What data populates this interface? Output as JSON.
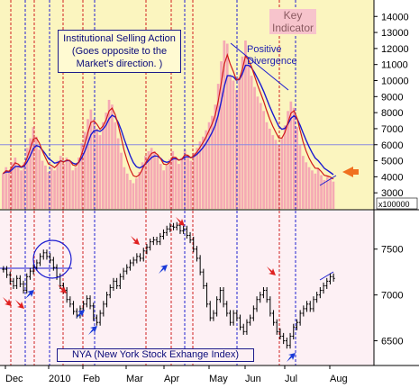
{
  "chart_data": [
    {
      "type": "bar",
      "title": "",
      "panel": "top",
      "annotations": {
        "key_indicator": "Key\nIndicator",
        "institutional_note": "Institutional Selling Action\n(Goes opposite to the\nMarket's direction. )",
        "divergence": "Positive\nDivergence"
      },
      "y_unit": "x100000",
      "yticks": [
        3000,
        4000,
        5000,
        6000,
        7000,
        8000,
        9000,
        10000,
        11000,
        12000,
        13000,
        14000
      ],
      "ylim": [
        2000,
        14800
      ],
      "reference_line": 6000,
      "series_bar_values": [
        4200,
        4600,
        4300,
        4900,
        5200,
        4700,
        4400,
        4900,
        5800,
        6400,
        7100,
        6500,
        5700,
        5000,
        4700,
        4300,
        4600,
        4400,
        5000,
        5300,
        4800,
        5200,
        5000,
        4400,
        4600,
        5200,
        6100,
        6800,
        7600,
        8200,
        7600,
        7000,
        6600,
        7400,
        8000,
        8800,
        8500,
        7400,
        6400,
        5500,
        4600,
        4200,
        3800,
        3600,
        3900,
        4300,
        4900,
        5300,
        5600,
        5800,
        5600,
        5200,
        4800,
        4400,
        4700,
        5100,
        5600,
        5200,
        4800,
        5200,
        5700,
        5300,
        5000,
        5500,
        5800,
        6200,
        6500,
        6900,
        7400,
        7800,
        8500,
        9800,
        11200,
        12500,
        12300,
        10300,
        10000,
        9400,
        10200,
        11500,
        12500,
        11000,
        10300,
        9600,
        9000,
        8600,
        8100,
        7400,
        7000,
        6600,
        6300,
        6000,
        6400,
        7200,
        8100,
        8700,
        8300,
        7100,
        6000,
        5300,
        4900,
        4600,
        4400,
        4200,
        4500,
        4100,
        3800,
        4000,
        3900,
        3700
      ]
    },
    {
      "type": "candlestick",
      "title": "",
      "panel": "bottom",
      "series_name": "NYA (New York Stock Exhange Index)",
      "yticks": [
        6500,
        7000,
        7500
      ],
      "ylim": [
        6250,
        7900
      ],
      "xticks": [
        "Dec",
        "2010",
        "Feb",
        "Mar",
        "Apr",
        "May",
        "Jun",
        "Jul",
        "Aug"
      ],
      "close_values": [
        7280,
        7220,
        7150,
        7100,
        7180,
        7120,
        7050,
        7200,
        7260,
        7300,
        7350,
        7420,
        7460,
        7420,
        7380,
        7300,
        7200,
        7100,
        7050,
        6950,
        6900,
        6820,
        6780,
        6850,
        6900,
        6960,
        6880,
        6750,
        6700,
        6800,
        6900,
        7000,
        7080,
        7150,
        7100,
        7200,
        7260,
        7300,
        7350,
        7380,
        7420,
        7400,
        7480,
        7520,
        7580,
        7600,
        7580,
        7640,
        7680,
        7720,
        7750,
        7740,
        7760,
        7700,
        7720,
        7650,
        7600,
        7500,
        7400,
        7250,
        7100,
        6900,
        6750,
        6800,
        6950,
        7050,
        6900,
        6800,
        6700,
        6800,
        6750,
        6650,
        6600,
        6700,
        6750,
        6850,
        6950,
        7000,
        7050,
        6950,
        6800,
        6700,
        6600,
        6550,
        6500,
        6450,
        6550,
        6650,
        6700,
        6800,
        6850,
        6900,
        6850,
        6950,
        7000,
        7050,
        7100,
        7150,
        7200,
        7180
      ]
    }
  ]
}
